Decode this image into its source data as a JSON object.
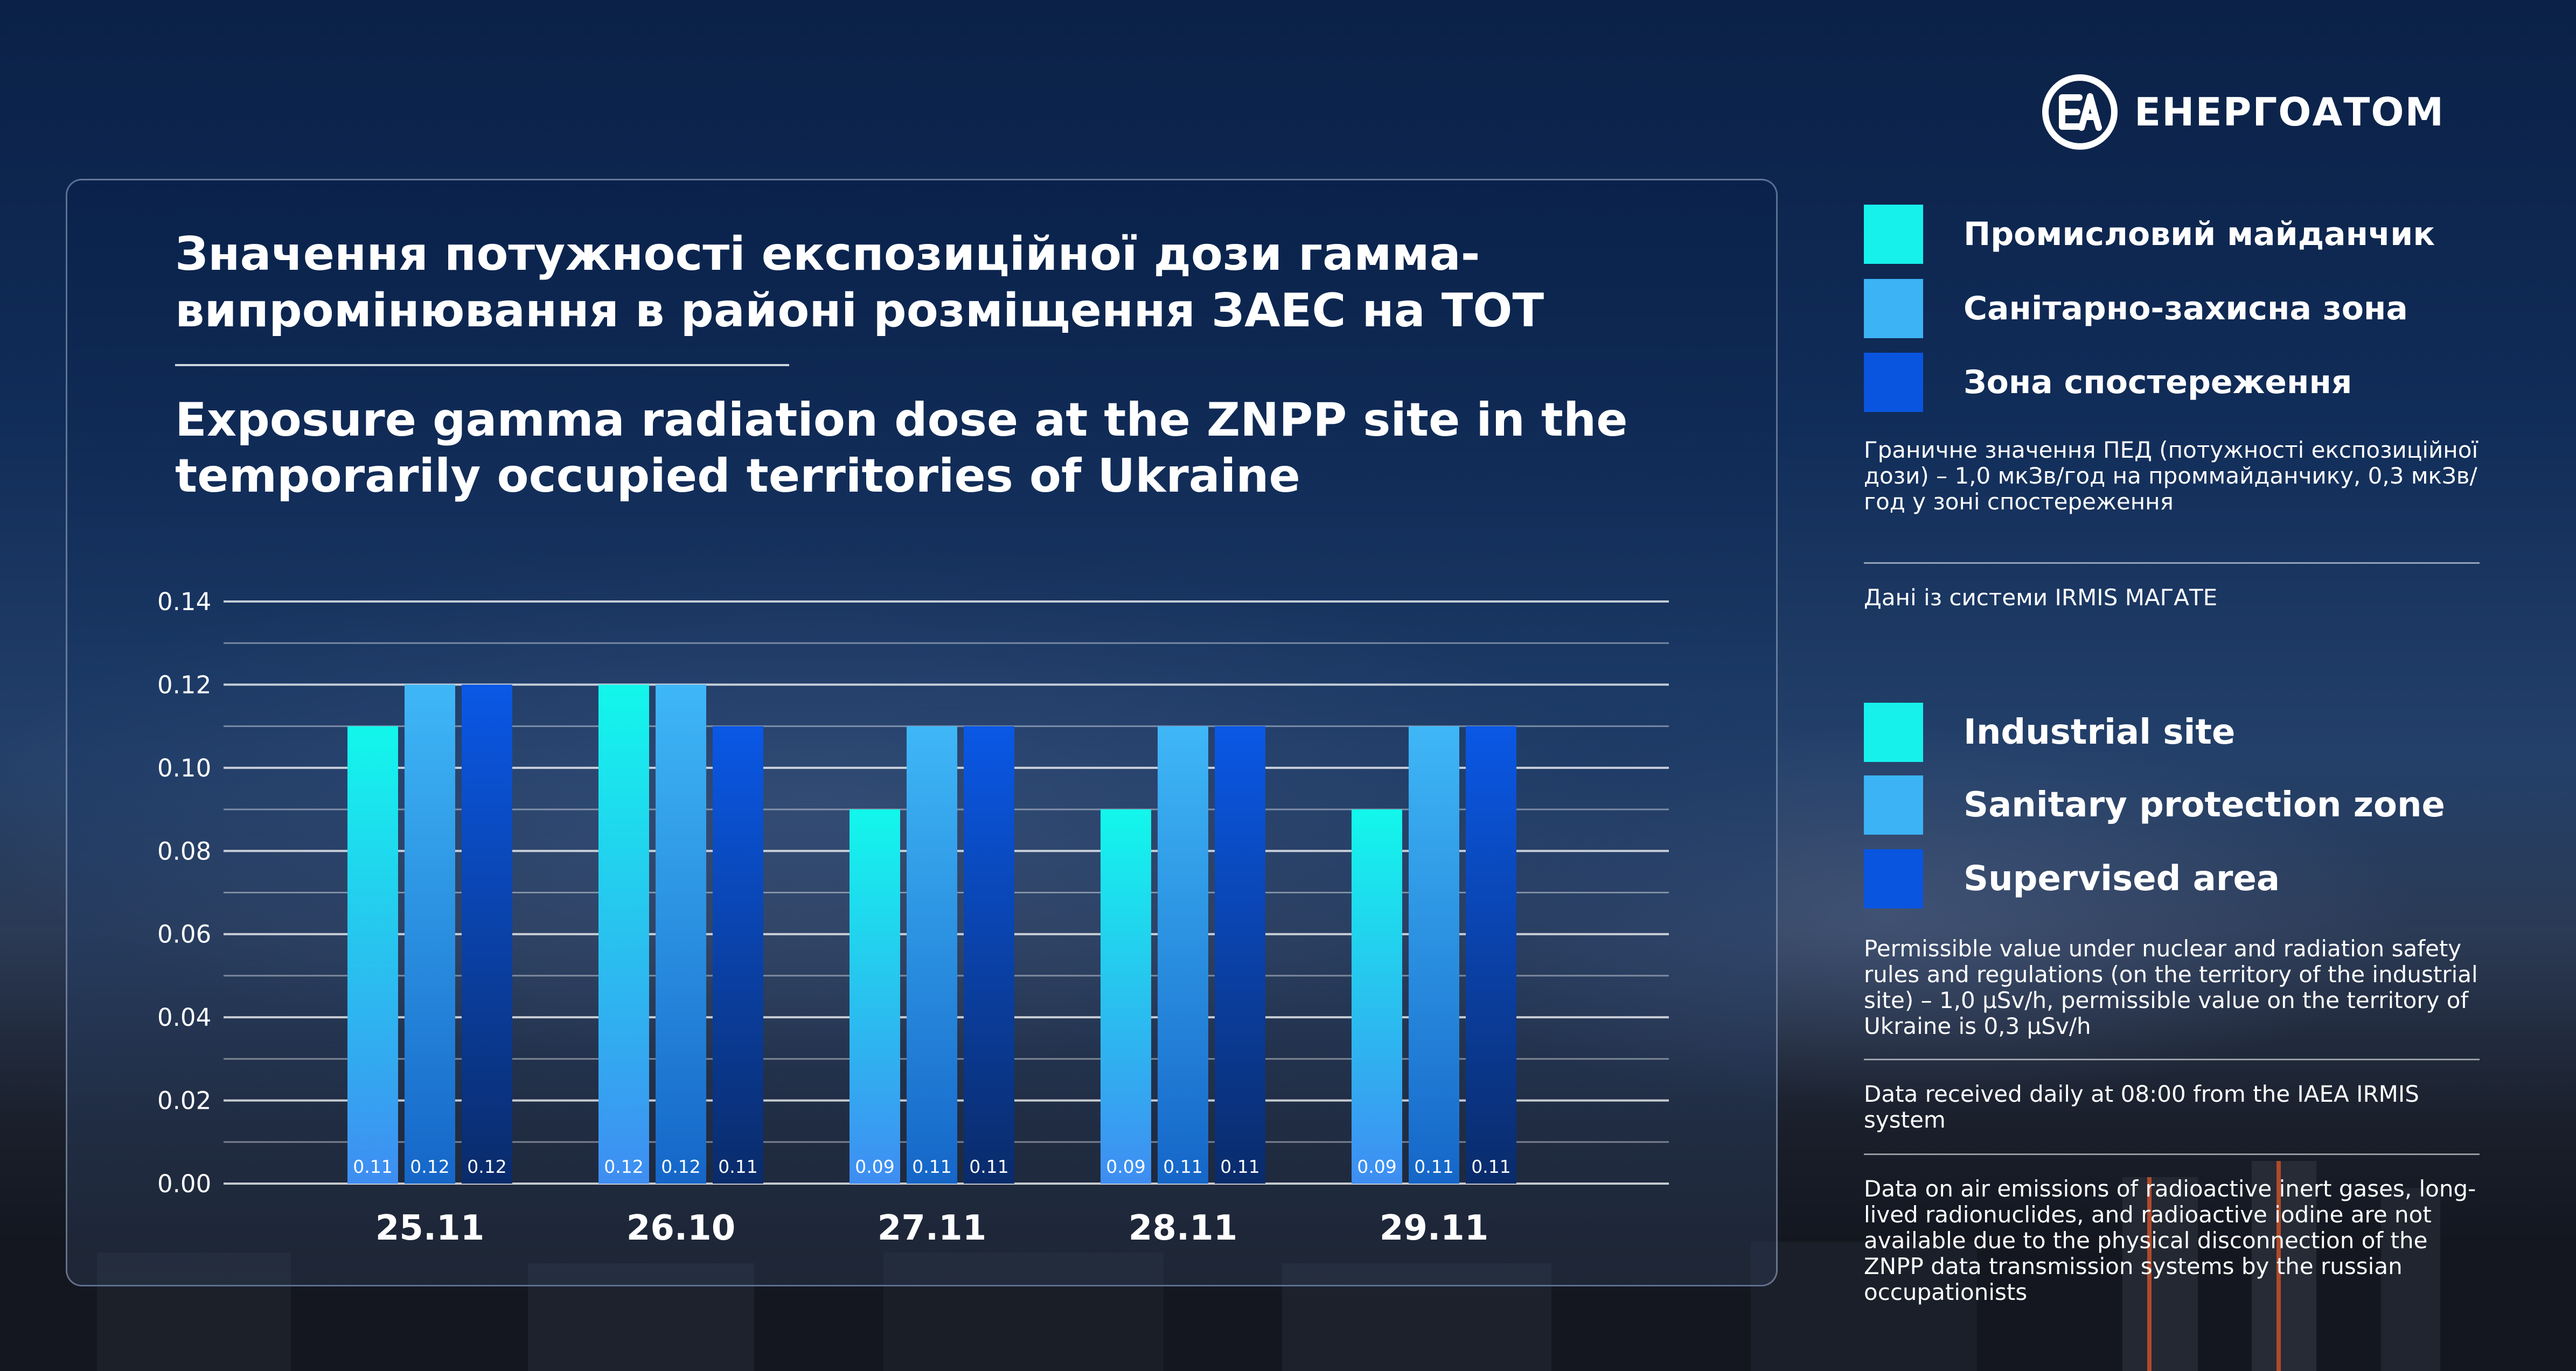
{
  "brand": {
    "name": "ЕНЕРГОАТОМ"
  },
  "titles": {
    "ua": "Значення потужності експозиційної дози гамма-випромінювання в районі розміщення ЗАЕС на ТОТ",
    "en": "Exposure gamma radiation dose at the ZNPP site in the temporarily occupied territories of Ukraine"
  },
  "legend_ua": [
    {
      "label": "Промисловий майданчик",
      "color": "#16f1ec"
    },
    {
      "label": "Санітарно-захисна зона",
      "color": "#3cb3f5"
    },
    {
      "label": "Зона спостереження",
      "color": "#0a55e0"
    }
  ],
  "legend_en": [
    {
      "label": "Industrial site",
      "color": "#16f1ec"
    },
    {
      "label": "Sanitary protection zone",
      "color": "#3cb3f5"
    },
    {
      "label": "Supervised area",
      "color": "#0a55e0"
    }
  ],
  "notes": {
    "limit_ua": "Граничне значення ПЕД (потужності експозиційної дози) – 1,0 мкЗв/год на проммайданчику, 0,3 мкЗв/год у зоні спостереження",
    "source_ua": "Дані із системи IRMIS МАГАТЕ",
    "limit_en": "Permissible value under nuclear and radiation safety rules and regulations (on the territory of the industrial site) – 1,0 μSv/h, permissible value on the territory of Ukraine is 0,3 μSv/h",
    "source_en": "Data received daily at 08:00 from the IAEA IRMIS system",
    "emissions_en": "Data on air emissions of radioactive inert gases, long-lived radionuclides, and radioactive iodine are not available due to the physical disconnection of the ZNPP data transmission systems by the russian occupationists"
  },
  "chart_data": {
    "type": "bar",
    "categories": [
      "25.11",
      "26.10",
      "27.11",
      "28.11",
      "29.11"
    ],
    "series": [
      {
        "name": "Industrial site",
        "values": [
          0.11,
          0.12,
          0.09,
          0.09,
          0.09
        ],
        "labels": [
          "0.11",
          "0.12",
          "0.09",
          "0.09",
          "0.09"
        ]
      },
      {
        "name": "Sanitary protection zone",
        "values": [
          0.12,
          0.12,
          0.11,
          0.11,
          0.11
        ],
        "labels": [
          "0.12",
          "0.12",
          "0.11",
          "0.11",
          "0.11"
        ]
      },
      {
        "name": "Supervised area",
        "values": [
          0.12,
          0.11,
          0.11,
          0.11,
          0.11
        ],
        "labels": [
          "0.12",
          "0.11",
          "0.11",
          "0.11",
          "0.11"
        ]
      }
    ],
    "ylim": [
      0,
      0.14
    ],
    "yticks": [
      "0.14",
      "0.12",
      "0.10",
      "0.08",
      "0.06",
      "0.04",
      "0.02",
      "0.00"
    ],
    "grid": true
  }
}
